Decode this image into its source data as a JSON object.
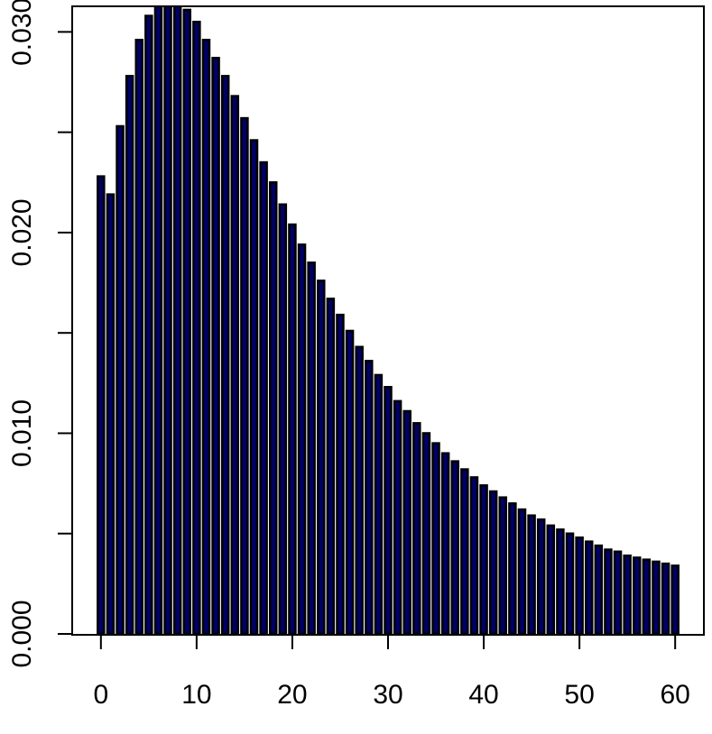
{
  "chart_data": {
    "type": "bar",
    "title": "",
    "xlabel": "",
    "ylabel": "",
    "x": [
      0,
      1,
      2,
      3,
      4,
      5,
      6,
      7,
      8,
      9,
      10,
      11,
      12,
      13,
      14,
      15,
      16,
      17,
      18,
      19,
      20,
      21,
      22,
      23,
      24,
      25,
      26,
      27,
      28,
      29,
      30,
      31,
      32,
      33,
      34,
      35,
      36,
      37,
      38,
      39,
      40,
      41,
      42,
      43,
      44,
      45,
      46,
      47,
      48,
      49,
      50,
      51,
      52,
      53,
      54,
      55,
      56,
      57,
      58,
      59,
      60
    ],
    "values": [
      0.0228,
      0.0219,
      0.0253,
      0.0278,
      0.0296,
      0.0308,
      0.0314,
      0.0316,
      0.0314,
      0.0311,
      0.0305,
      0.0296,
      0.0287,
      0.0278,
      0.0268,
      0.0257,
      0.0246,
      0.0235,
      0.0225,
      0.0214,
      0.0204,
      0.0194,
      0.0185,
      0.0176,
      0.0167,
      0.0159,
      0.0151,
      0.0143,
      0.0136,
      0.0129,
      0.0123,
      0.0116,
      0.0111,
      0.0105,
      0.01,
      0.0095,
      0.009,
      0.0086,
      0.0082,
      0.0078,
      0.0074,
      0.0071,
      0.0068,
      0.0065,
      0.0062,
      0.0059,
      0.0057,
      0.0054,
      0.0052,
      0.005,
      0.0048,
      0.0046,
      0.0044,
      0.0042,
      0.0041,
      0.0039,
      0.0038,
      0.0037,
      0.0036,
      0.0035,
      0.0034
    ],
    "xlim": [
      -3,
      63
    ],
    "ylim": [
      0,
      0.0315
    ],
    "x_ticks": [
      0,
      10,
      20,
      30,
      40,
      50,
      60
    ],
    "x_tick_labels": [
      "0",
      "10",
      "20",
      "30",
      "40",
      "50",
      "60"
    ],
    "y_ticks": [
      0.0,
      0.005,
      0.01,
      0.015,
      0.02,
      0.025,
      0.03
    ],
    "y_tick_labels": [
      "0.000",
      "",
      "0.010",
      "",
      "0.020",
      "",
      "0.030"
    ],
    "bar_fill": "#000066",
    "bar_stroke": "#000000",
    "grid": false,
    "legend": "none"
  }
}
